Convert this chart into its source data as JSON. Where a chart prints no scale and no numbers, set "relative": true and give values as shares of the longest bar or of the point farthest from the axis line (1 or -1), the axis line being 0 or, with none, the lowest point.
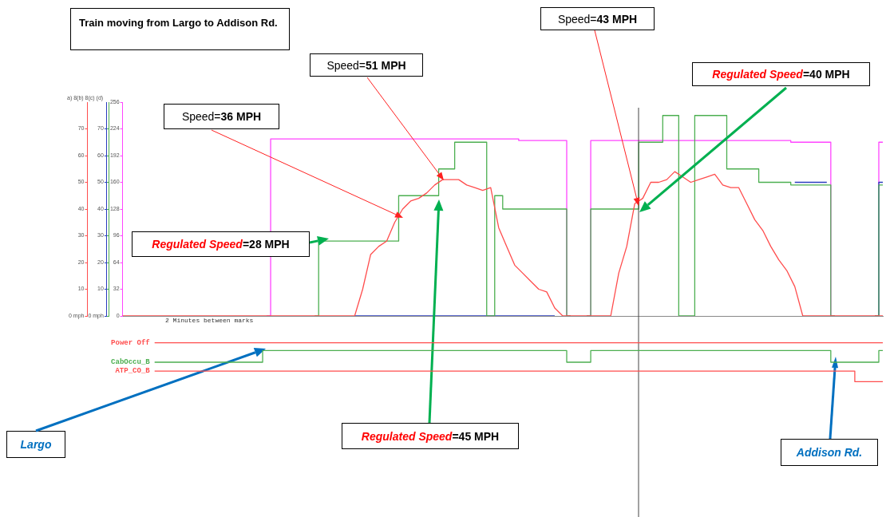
{
  "chart_data": [
    {
      "type": "step",
      "title": "Train moving from Largo to Addison Rd.",
      "tick_labels": "y",
      "categories": [
        null,
        null,
        null,
        null,
        null,
        null,
        null,
        null,
        null,
        null,
        null,
        null,
        null,
        null,
        null,
        null,
        null,
        null,
        null,
        null,
        null,
        null,
        null,
        null,
        null,
        null,
        null,
        null,
        null,
        null,
        null,
        null,
        null,
        null,
        null,
        null,
        null,
        null,
        null,
        null,
        null,
        null,
        null,
        null,
        null,
        null,
        null,
        null,
        null,
        null,
        null,
        null,
        null,
        null,
        null,
        null,
        null,
        null,
        null,
        null,
        null,
        null,
        null,
        null,
        null,
        null,
        null,
        null,
        null,
        null,
        null,
        null,
        null,
        null,
        null,
        null,
        null,
        null,
        null,
        null,
        null,
        null,
        null,
        null,
        null,
        null,
        null,
        null,
        null,
        null,
        null,
        null,
        null,
        null,
        null,
        null
      ],
      "series": [
        {
          "type": "line",
          "color": "#ff4d4d",
          "values": [
            0,
            0,
            0,
            0,
            0,
            0,
            0,
            0,
            0,
            0,
            0,
            0,
            0,
            0,
            0,
            0,
            0,
            0,
            0,
            0,
            0,
            0,
            0,
            0,
            0,
            0,
            0,
            0,
            0,
            0,
            10,
            23,
            26,
            28,
            35,
            40,
            43,
            44,
            46,
            49,
            51,
            51,
            51,
            49,
            48,
            47,
            48,
            33,
            26,
            19,
            16,
            13,
            10,
            9,
            3,
            0,
            0,
            0,
            0,
            0,
            0,
            0,
            16,
            26,
            42,
            44,
            50,
            50,
            51,
            54,
            52,
            50,
            51,
            52,
            53,
            49,
            48,
            48,
            42,
            36,
            32,
            26,
            21,
            17,
            11,
            0,
            0,
            0,
            0,
            0,
            0,
            0,
            0,
            0,
            0,
            0
          ]
        },
        {
          "axis": "y2",
          "color": "#4caf50",
          "values": [
            null,
            null,
            null,
            null,
            null,
            null,
            null,
            null,
            null,
            null,
            null,
            null,
            null,
            null,
            null,
            null,
            null,
            null,
            null,
            null,
            null,
            null,
            null,
            null,
            0,
            28,
            28,
            28,
            28,
            28,
            28,
            28,
            28,
            28,
            28,
            45,
            45,
            45,
            45,
            45,
            55,
            55,
            65,
            65,
            65,
            65,
            0,
            45,
            40,
            40,
            40,
            40,
            40,
            40,
            40,
            40,
            0,
            null,
            0,
            40,
            40,
            40,
            40,
            40,
            40,
            65,
            65,
            65,
            75,
            75,
            0,
            0,
            75,
            75,
            75,
            75,
            55,
            55,
            55,
            55,
            50,
            50,
            50,
            50,
            49,
            49,
            49,
            49,
            49,
            0,
            null,
            null,
            null,
            null,
            0,
            49
          ]
        },
        {
          "axis": "y2",
          "color": "#2a3cc0",
          "values": [
            null,
            null,
            null,
            null,
            null,
            null,
            null,
            null,
            null,
            null,
            null,
            null,
            null,
            null,
            null,
            null,
            null,
            null,
            null,
            null,
            null,
            null,
            null,
            null,
            null,
            null,
            null,
            null,
            null,
            0,
            0,
            0,
            0,
            0,
            0,
            0,
            0,
            0,
            0,
            0,
            0,
            0,
            0,
            0,
            0,
            0,
            0,
            0,
            0,
            0,
            0,
            0,
            0,
            0,
            0,
            null,
            null,
            null,
            null,
            null,
            null,
            null,
            null,
            null,
            null,
            null,
            null,
            null,
            null,
            null,
            null,
            null,
            null,
            null,
            null,
            null,
            null,
            null,
            null,
            null,
            null,
            null,
            null,
            null,
            50,
            50,
            50,
            50,
            50,
            null,
            null,
            null,
            null,
            null,
            0,
            50
          ]
        },
        {
          "axis": "y3",
          "color": "#ff44ff",
          "values": [
            null,
            null,
            null,
            null,
            null,
            null,
            null,
            null,
            null,
            null,
            null,
            null,
            null,
            null,
            null,
            null,
            null,
            null,
            0,
            212,
            212,
            212,
            212,
            212,
            212,
            212,
            212,
            212,
            212,
            212,
            212,
            212,
            212,
            212,
            212,
            212,
            212,
            212,
            212,
            212,
            212,
            212,
            212,
            212,
            212,
            212,
            212,
            212,
            212,
            212,
            210,
            210,
            210,
            210,
            210,
            210,
            0,
            null,
            0,
            210,
            210,
            210,
            210,
            210,
            210,
            210,
            210,
            210,
            210,
            210,
            210,
            210,
            210,
            210,
            210,
            210,
            210,
            210,
            210,
            210,
            210,
            210,
            210,
            210,
            208,
            208,
            208,
            208,
            208,
            0,
            null,
            null,
            null,
            null,
            0,
            208
          ]
        }
      ],
      "ylim": [
        0,
        80
      ],
      "yticks": [
        {
          "value": 0,
          "label": "0 mph"
        },
        10,
        20,
        30,
        40,
        50,
        60,
        70
      ],
      "y2lim": [
        0,
        80
      ],
      "y2ticks": [
        {
          "value": 0,
          "label": "0 mph"
        },
        10,
        20,
        30,
        40,
        50,
        60,
        70
      ],
      "y3lim": [
        0,
        256
      ],
      "y3ticks": [
        0,
        32,
        64,
        96,
        128,
        160,
        192,
        224,
        256
      ],
      "annotations": [
        "2 Minutes between marks",
        "Speed=36 MPH",
        "Speed=51 MPH",
        "Speed=43 MPH",
        "Regulated Speed=40 MPH",
        "Regulated Speed=28 MPH",
        "Regulated Speed=45 MPH",
        "Largo",
        "Addison Rd.",
        "a) 8(b) 8(c) (d)"
      ]
    },
    {
      "type": "step",
      "relative": true,
      "tick_labels": false,
      "categories": [
        null,
        null,
        null,
        null,
        null,
        null,
        null,
        null,
        null,
        null,
        null,
        null,
        null,
        null,
        null,
        null,
        null,
        null,
        null,
        null,
        null,
        null,
        null,
        null,
        null,
        null,
        null,
        null,
        null,
        null,
        null,
        null,
        null,
        null,
        null,
        null,
        null,
        null,
        null,
        null,
        null,
        null,
        null,
        null,
        null,
        null,
        null,
        null,
        null,
        null,
        null,
        null,
        null,
        null,
        null,
        null,
        null,
        null,
        null,
        null,
        null,
        null,
        null,
        null,
        null,
        null,
        null,
        null,
        null,
        null,
        null,
        null,
        null,
        null,
        null,
        null,
        null,
        null,
        null,
        null,
        null,
        null,
        null,
        null,
        null,
        null,
        null,
        null,
        null,
        null,
        null,
        null,
        null,
        null,
        null,
        null
      ],
      "series": [
        {
          "name": "Power Off",
          "color": "#ff4d4d",
          "values": [
            null,
            null,
            null,
            null,
            1,
            1,
            1,
            1,
            1,
            1,
            1,
            1,
            1,
            1,
            1,
            1,
            1,
            1,
            1,
            1,
            1,
            1,
            1,
            1,
            1,
            1,
            1,
            1,
            1,
            1,
            1,
            1,
            1,
            1,
            1,
            1,
            1,
            1,
            1,
            1,
            1,
            1,
            1,
            1,
            1,
            1,
            1,
            1,
            1,
            1,
            1,
            1,
            1,
            1,
            1,
            1,
            1,
            1,
            1,
            1,
            1,
            1,
            1,
            1,
            1,
            1,
            1,
            1,
            1,
            1,
            1,
            1,
            1,
            1,
            1,
            1,
            1,
            1,
            1,
            1,
            1,
            1,
            1,
            1,
            1,
            1,
            1,
            1,
            1,
            1,
            1,
            1,
            1,
            1,
            1,
            1
          ]
        },
        {
          "name": "CabOccu_B",
          "color": "#4caf50",
          "values": [
            null,
            null,
            null,
            null,
            0.5,
            0.5,
            0.5,
            0.5,
            0.5,
            0.5,
            0.5,
            0.5,
            0.5,
            0.5,
            0.5,
            0.5,
            0.5,
            0.5,
            0.8,
            0.8,
            0.8,
            0.8,
            0.8,
            0.8,
            0.8,
            0.8,
            0.8,
            0.8,
            0.8,
            0.8,
            0.8,
            0.8,
            0.8,
            0.8,
            0.8,
            0.8,
            0.8,
            0.8,
            0.8,
            0.8,
            0.8,
            0.8,
            0.8,
            0.8,
            0.8,
            0.8,
            0.8,
            0.8,
            0.8,
            0.8,
            0.8,
            0.8,
            0.8,
            0.8,
            0.8,
            0.8,
            0.5,
            0.5,
            0.5,
            0.8,
            0.8,
            0.8,
            0.8,
            0.8,
            0.8,
            0.8,
            0.8,
            0.8,
            0.8,
            0.8,
            0.8,
            0.8,
            0.8,
            0.8,
            0.8,
            0.8,
            0.8,
            0.8,
            0.8,
            0.8,
            0.8,
            0.8,
            0.8,
            0.8,
            0.8,
            0.8,
            0.8,
            0.8,
            0.8,
            0.5,
            0.5,
            0.5,
            0.5,
            0.5,
            0.5,
            0.8
          ]
        },
        {
          "name": "ATP_CO_B",
          "color": "#ff4d4d",
          "values": [
            null,
            null,
            null,
            null,
            0.27,
            0.27,
            0.27,
            0.27,
            0.27,
            0.27,
            0.27,
            0.27,
            0.27,
            0.27,
            0.27,
            0.27,
            0.27,
            0.27,
            0.27,
            0.27,
            0.27,
            0.27,
            0.27,
            0.27,
            0.27,
            0.27,
            0.27,
            0.27,
            0.27,
            0.27,
            0.27,
            0.27,
            0.27,
            0.27,
            0.27,
            0.27,
            0.27,
            0.27,
            0.27,
            0.27,
            0.27,
            0.27,
            0.27,
            0.27,
            0.27,
            0.27,
            0.27,
            0.27,
            0.27,
            0.27,
            0.27,
            0.27,
            0.27,
            0.27,
            0.27,
            0.27,
            0.27,
            0.27,
            0.27,
            0.27,
            0.27,
            0.27,
            0.27,
            0.27,
            0.27,
            0.27,
            0.27,
            0.27,
            0.27,
            0.27,
            0.27,
            0.27,
            0.27,
            0.27,
            0.27,
            0.27,
            0.27,
            0.27,
            0.27,
            0.27,
            0.27,
            0.27,
            0.27,
            0.27,
            0.27,
            0.27,
            0.27,
            0.27,
            0.27,
            0.27,
            0.27,
            0.27,
            0,
            0,
            0,
            0
          ]
        }
      ]
    }
  ]
}
